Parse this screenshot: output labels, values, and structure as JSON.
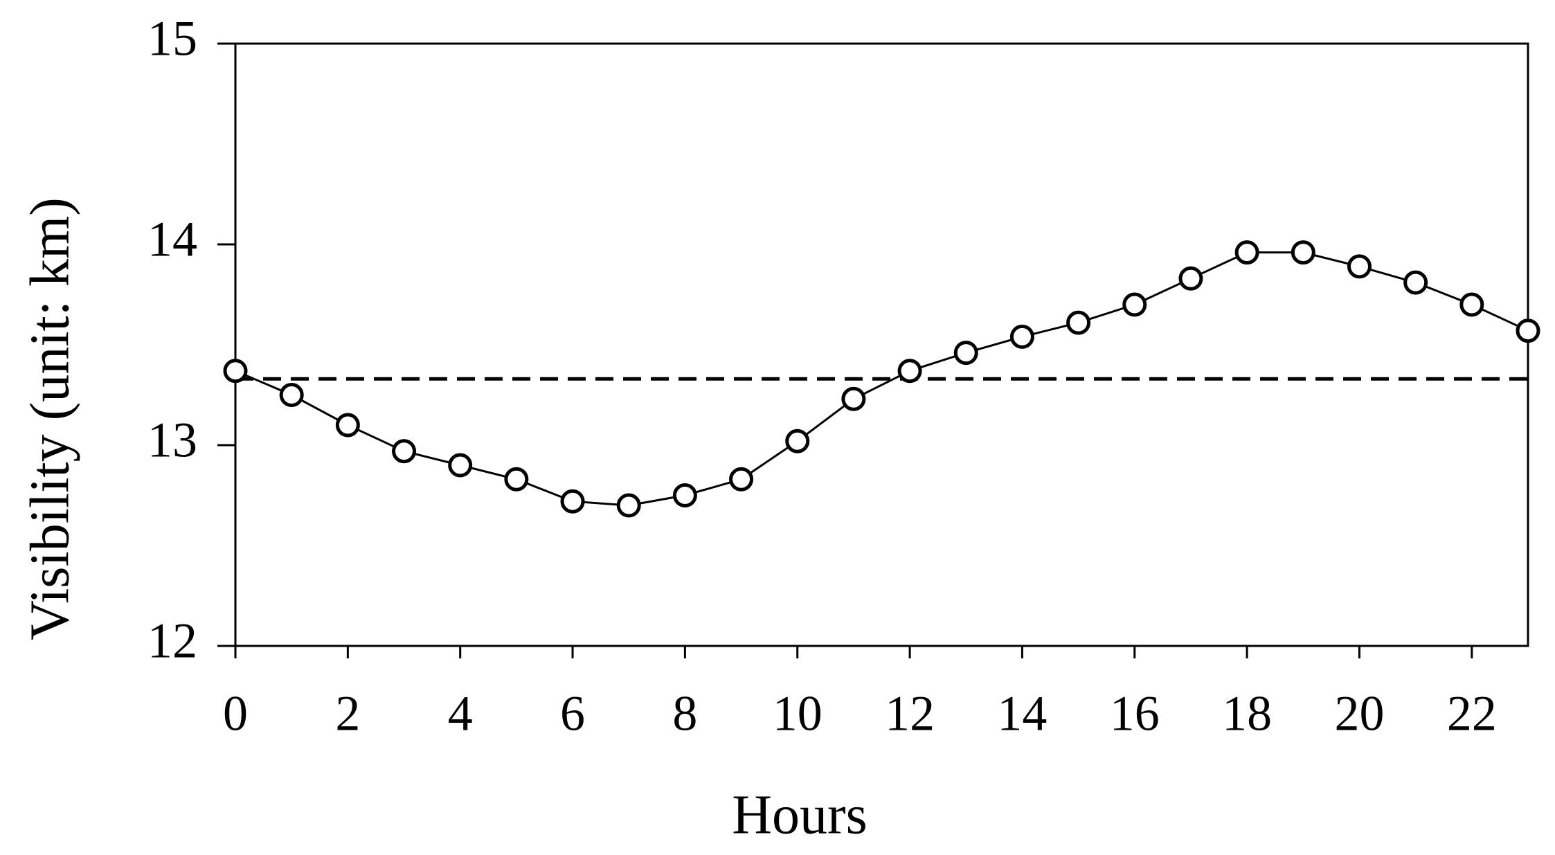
{
  "chart_data": {
    "type": "line",
    "x_label": "Hours",
    "y_label": "Visibility (unit: km)",
    "x": [
      0,
      1,
      2,
      3,
      4,
      5,
      6,
      7,
      8,
      9,
      10,
      11,
      12,
      13,
      14,
      15,
      16,
      17,
      18,
      19,
      20,
      21,
      22,
      23
    ],
    "series": [
      {
        "color": "#000000",
        "values": [
          13.37,
          13.25,
          13.1,
          12.97,
          12.9,
          12.83,
          12.72,
          12.7,
          12.75,
          12.83,
          13.02,
          13.23,
          13.37,
          13.46,
          13.54,
          13.61,
          13.7,
          13.83,
          13.96,
          13.96,
          13.89,
          13.81,
          13.7,
          13.57
        ]
      }
    ],
    "reference_line": 13.33,
    "xlim": [
      0,
      23
    ],
    "xticks": [
      0,
      2,
      4,
      6,
      8,
      10,
      12,
      14,
      16,
      18,
      20,
      22
    ],
    "ylim": [
      12,
      15
    ],
    "yticks": [
      12,
      13,
      14,
      15
    ],
    "grid": false
  }
}
